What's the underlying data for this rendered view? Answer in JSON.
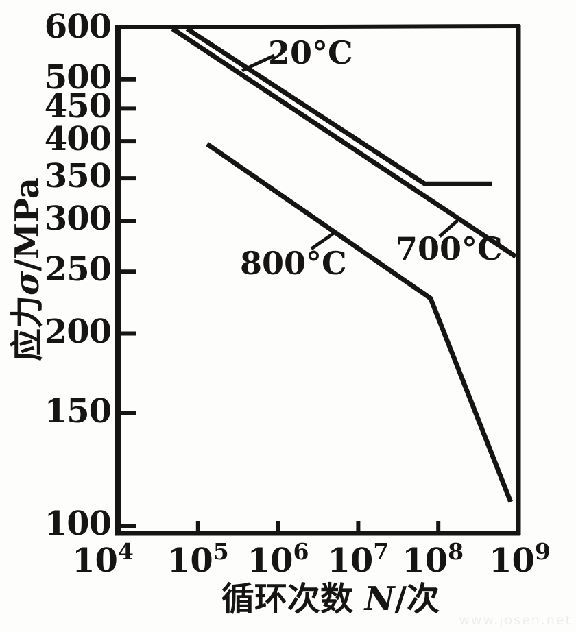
{
  "chart_data": {
    "type": "line",
    "title": "",
    "x_axis": {
      "label_prefix": "循环次数 ",
      "label_symbol": "N",
      "label_suffix": "/次",
      "scale": "log",
      "range": [
        10000,
        1000000000
      ],
      "tick_exponents": [
        4,
        5,
        6,
        7,
        8,
        9
      ],
      "tick_base": "10"
    },
    "y_axis": {
      "label_prefix": "应力",
      "label_symbol": "σ",
      "label_suffix": "/MPa",
      "scale": "log",
      "range": [
        100,
        600
      ],
      "ticks": [
        600,
        500,
        450,
        400,
        350,
        300,
        250,
        200,
        150,
        100
      ],
      "unit": "MPa"
    },
    "grid": false,
    "legend": "inline-labels",
    "series": [
      {
        "name": "20°C",
        "points": [
          [
            73000,
            600
          ],
          [
            68000000,
            343
          ],
          [
            470000000,
            343
          ]
        ],
        "note": "descends then flattens at fatigue limit ~343 MPa"
      },
      {
        "name": "700°C",
        "points": [
          [
            48000,
            600
          ],
          [
            925000000,
            264
          ]
        ]
      },
      {
        "name": "800°C",
        "points": [
          [
            130000,
            396
          ],
          [
            80000000,
            227
          ],
          [
            800000000,
            109
          ]
        ]
      }
    ],
    "annotations": [
      {
        "text": "20°C"
      },
      {
        "text": "700°C"
      },
      {
        "text": "800°C"
      }
    ]
  },
  "watermark": "www.josen.net",
  "colors": {
    "ink": "#171513",
    "background": "#fdfdfc",
    "watermark": "#efedec"
  }
}
